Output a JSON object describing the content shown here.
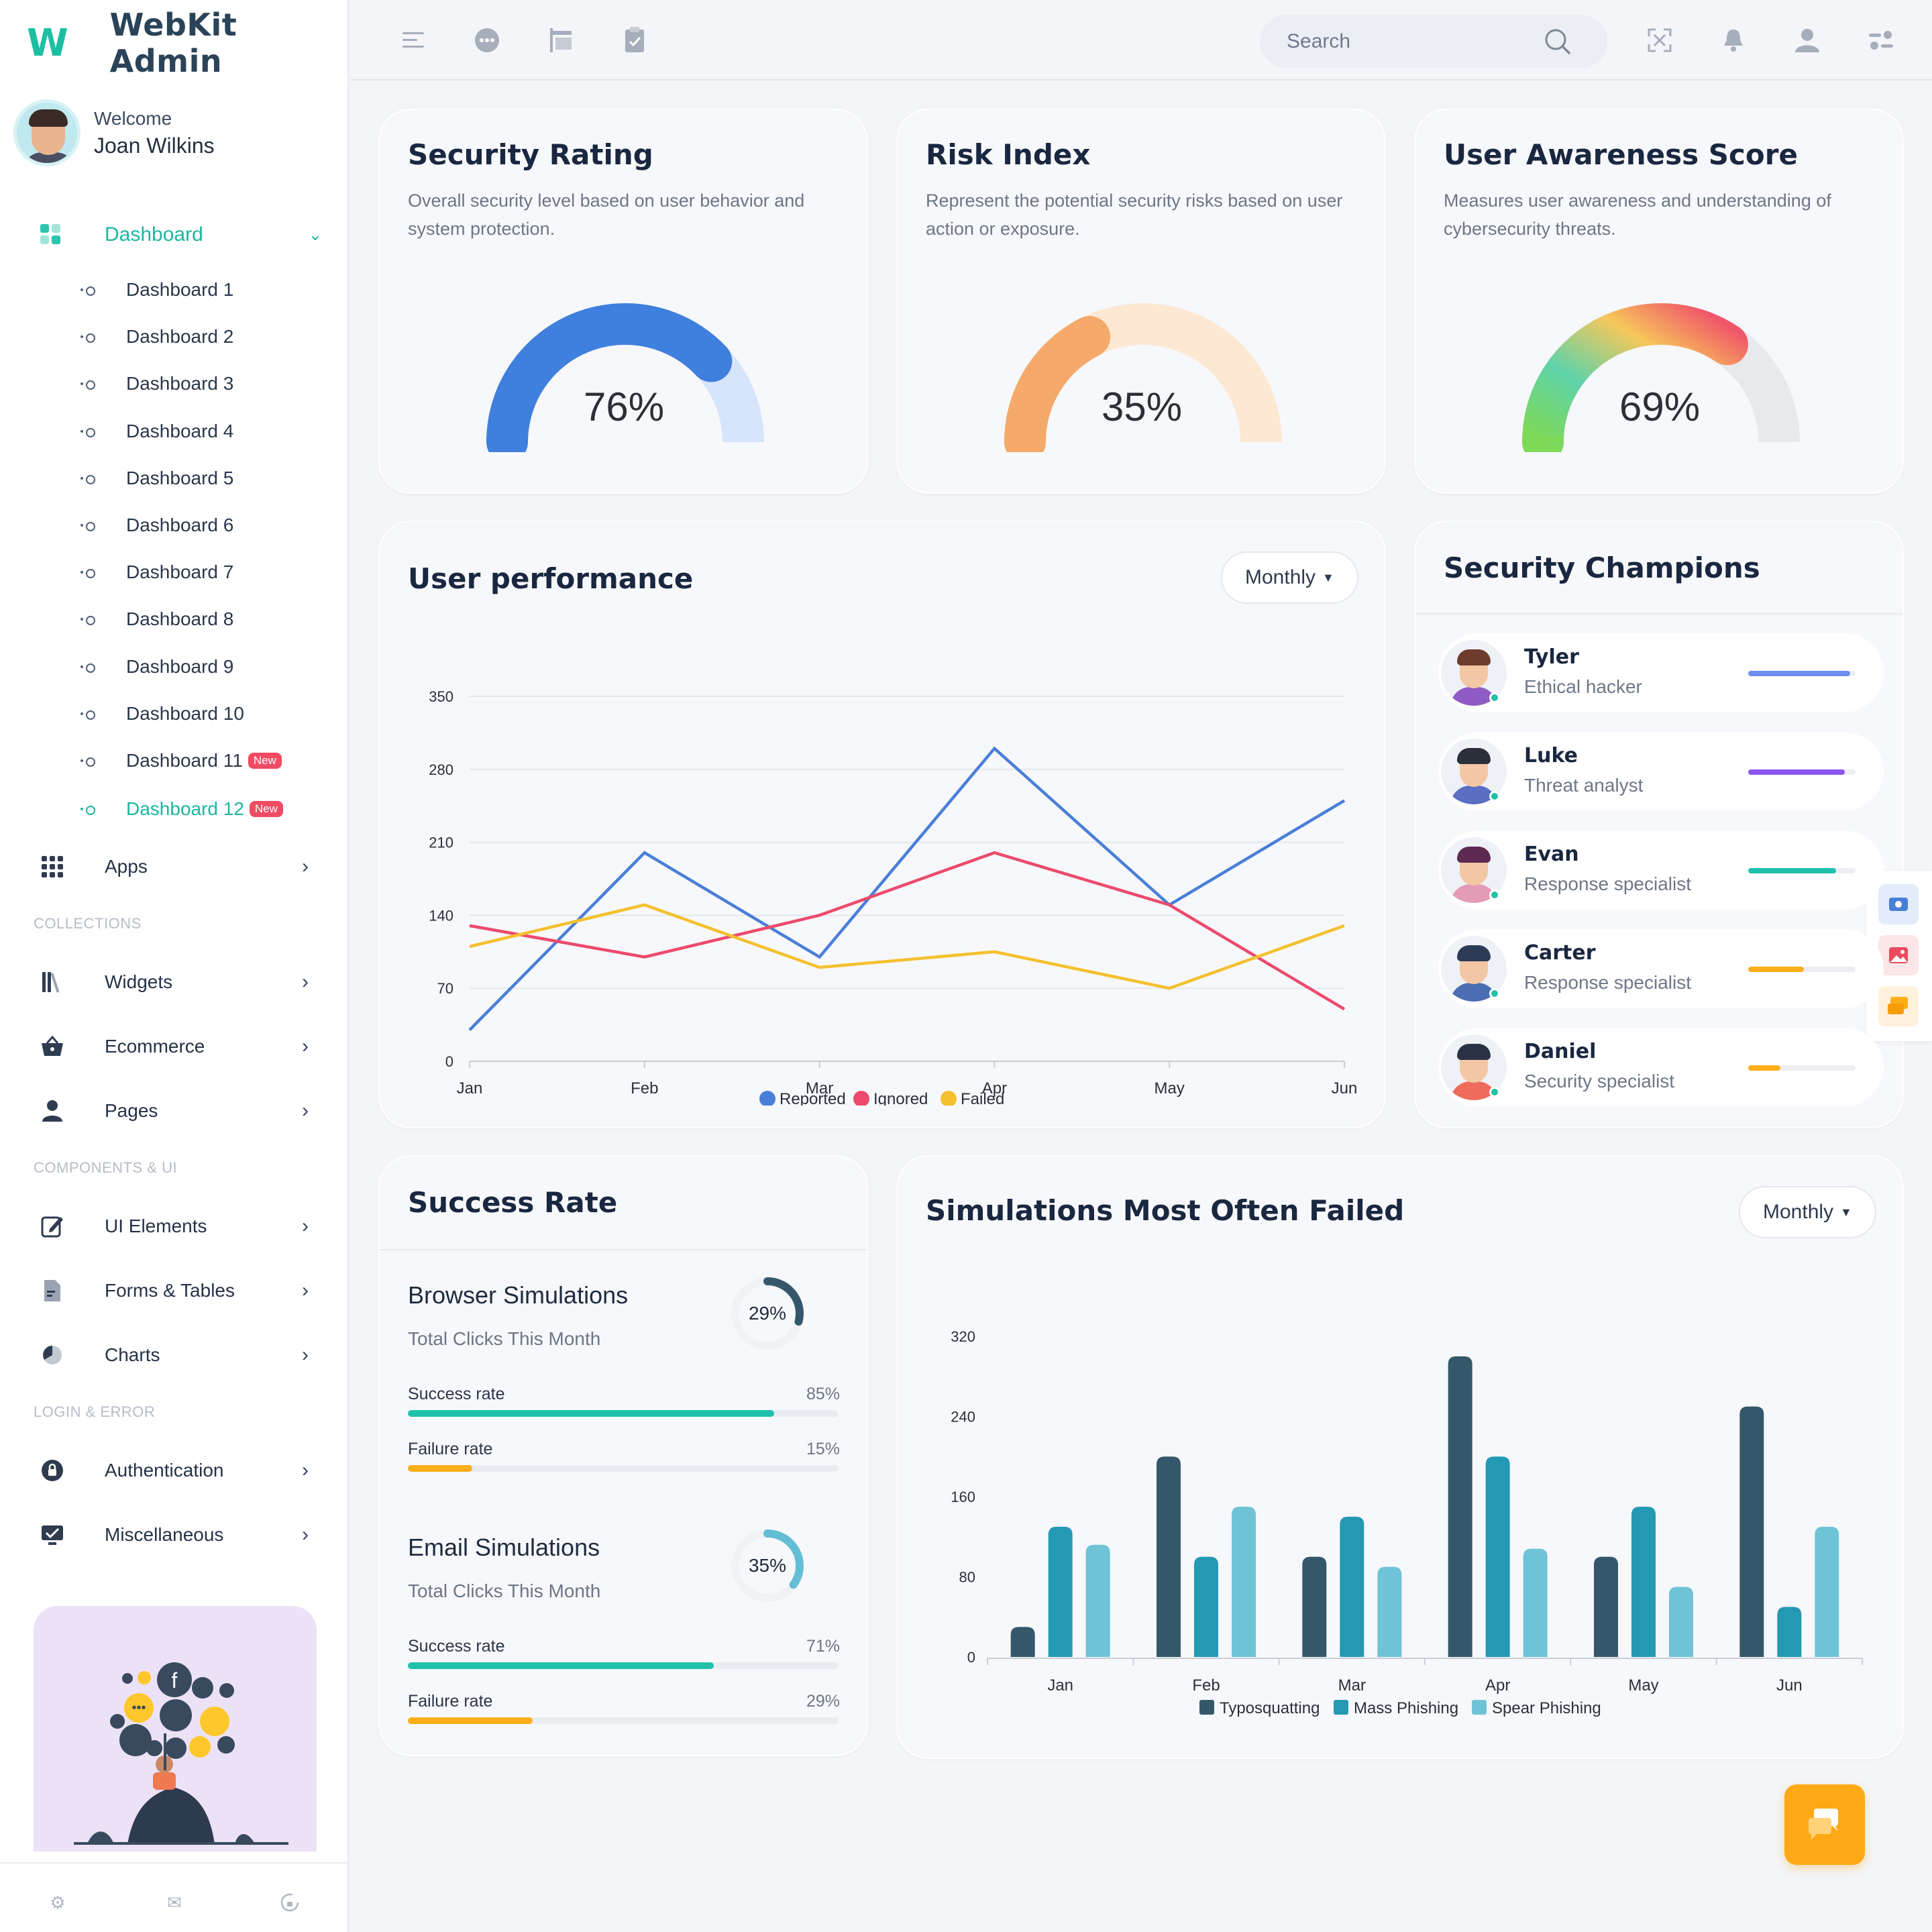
{
  "app": {
    "logo_mark": "W",
    "name": "WebKit Admin"
  },
  "profile": {
    "welcome": "Welcome",
    "name": "Joan Wilkins"
  },
  "sidebar": {
    "dashboard_label": "Dashboard",
    "dashboards": [
      {
        "label": "Dashboard 1"
      },
      {
        "label": "Dashboard 2"
      },
      {
        "label": "Dashboard 3"
      },
      {
        "label": "Dashboard 4"
      },
      {
        "label": "Dashboard 5"
      },
      {
        "label": "Dashboard 6"
      },
      {
        "label": "Dashboard 7"
      },
      {
        "label": "Dashboard 8"
      },
      {
        "label": "Dashboard 9"
      },
      {
        "label": "Dashboard 10"
      },
      {
        "label": "Dashboard 11",
        "badge": "New"
      },
      {
        "label": "Dashboard 12",
        "badge": "New",
        "active": true
      }
    ],
    "apps_label": "Apps",
    "sections": {
      "collections": "COLLECTIONS",
      "components": "COMPONENTS & UI",
      "login": "LOGIN & ERROR"
    },
    "items": {
      "widgets": "Widgets",
      "ecommerce": "Ecommerce",
      "pages": "Pages",
      "ui_elements": "UI Elements",
      "forms_tables": "Forms & Tables",
      "charts": "Charts",
      "authentication": "Authentication",
      "miscellaneous": "Miscellaneous"
    }
  },
  "topbar": {
    "search_placeholder": "Search"
  },
  "security_rating": {
    "title": "Security Rating",
    "description": "Overall security level based on user behavior and system protection.",
    "value": 76,
    "value_label": "76%",
    "color": "#3f7fdd",
    "track": "#d6e5fb"
  },
  "risk_index": {
    "title": "Risk Index",
    "description": "Represent the potential security risks based on user action or exposure.",
    "value": 35,
    "value_label": "35%",
    "color": "#f5a96a",
    "track": "#fde9d3"
  },
  "awareness": {
    "title": "User Awareness Score",
    "description": "Measures user awareness and understanding of cybersecurity threats.",
    "value": 69,
    "value_label": "69%",
    "track": "#e8e9eb"
  },
  "user_performance": {
    "title": "User performance",
    "filter": "Monthly",
    "chart_data": {
      "type": "line",
      "x": [
        "Jan",
        "Feb",
        "Mar",
        "Apr",
        "May",
        "Jun"
      ],
      "ylim": [
        0,
        350
      ],
      "yticks": [
        0,
        70,
        140,
        210,
        280,
        350
      ],
      "series": [
        {
          "name": "Reported",
          "color": "#4a7fd8",
          "values": [
            30,
            200,
            100,
            300,
            150,
            250
          ]
        },
        {
          "name": "Ignored",
          "color": "#ec4a6d",
          "values": [
            130,
            100,
            140,
            200,
            150,
            50
          ]
        },
        {
          "name": "Failed",
          "color": "#f4c02e",
          "values": [
            110,
            150,
            90,
            105,
            70,
            130
          ]
        }
      ],
      "legend": "bottom",
      "grid": true
    }
  },
  "champions": {
    "title": "Security Champions",
    "items": [
      {
        "name": "Tyler",
        "role": "Ethical hacker",
        "progress": 0.95,
        "color": "#6f8ff0"
      },
      {
        "name": "Luke",
        "role": "Threat analyst",
        "progress": 0.9,
        "color": "#8b54ee"
      },
      {
        "name": "Evan",
        "role": "Response specialist",
        "progress": 0.82,
        "color": "#21c0ad"
      },
      {
        "name": "Carter",
        "role": "Response specialist",
        "progress": 0.52,
        "color": "#fcae1b"
      },
      {
        "name": "Daniel",
        "role": "Security specialist",
        "progress": 0.3,
        "color": "#fcae1b"
      }
    ]
  },
  "success_rate": {
    "title": "Success Rate",
    "groups": [
      {
        "title": "Browser Simulations",
        "subtitle": "Total Clicks This Month",
        "ring_value": 29,
        "ring_label": "29%",
        "ring_color": "#34586a",
        "success_label": "Success rate",
        "success_value": 85,
        "success_pct": "85%",
        "failure_label": "Failure rate",
        "failure_value": 15,
        "failure_pct": "15%"
      },
      {
        "title": "Email Simulations",
        "subtitle": "Total Clicks This Month",
        "ring_value": 35,
        "ring_label": "35%",
        "ring_color": "#64bfd6",
        "success_label": "Success rate",
        "success_value": 71,
        "success_pct": "71%",
        "failure_label": "Failure rate",
        "failure_value": 29,
        "failure_pct": "29%"
      }
    ],
    "colors": {
      "success": "#20c1ac",
      "failure": "#fcae1b"
    }
  },
  "simulations": {
    "title": "Simulations Most Often Failed",
    "filter": "Monthly",
    "chart_data": {
      "type": "bar",
      "categories": [
        "Jan",
        "Feb",
        "Mar",
        "Apr",
        "May",
        "Jun"
      ],
      "ylim": [
        0,
        320
      ],
      "yticks": [
        0,
        80,
        160,
        240,
        320
      ],
      "series": [
        {
          "name": "Typosquatting",
          "color": "#34586a",
          "values": [
            30,
            200,
            100,
            300,
            100,
            250
          ]
        },
        {
          "name": "Mass Phishing",
          "color": "#2499b3",
          "values": [
            130,
            100,
            140,
            200,
            150,
            50
          ]
        },
        {
          "name": "Spear Phishing",
          "color": "#6fc3d6",
          "values": [
            112,
            150,
            90,
            108,
            70,
            130
          ]
        }
      ],
      "legend": "bottom",
      "grid": false
    }
  }
}
